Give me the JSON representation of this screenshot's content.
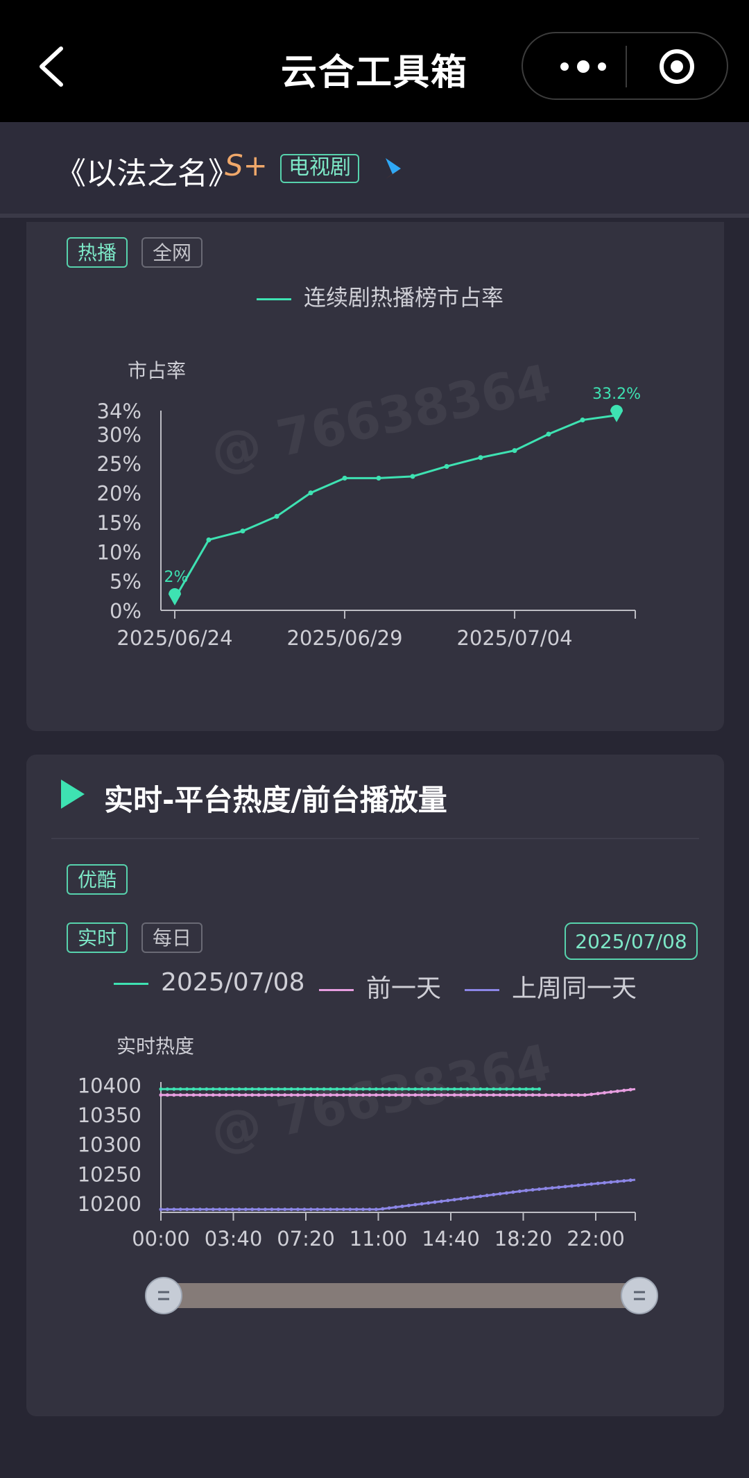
{
  "app": {
    "title": "云合工具箱"
  },
  "show": {
    "title": "《以法之名》",
    "grade": "S+",
    "genre": "电视剧"
  },
  "market_share_card": {
    "tags": [
      "热播",
      "全网"
    ],
    "legend": "连续剧热播榜市占率",
    "chart_data": {
      "type": "line",
      "title": "",
      "ylabel": "市占率",
      "xlabel": "",
      "y_ticks": [
        "0%",
        "5%",
        "10%",
        "15%",
        "20%",
        "25%",
        "30%",
        "34%"
      ],
      "x_ticks": [
        "2025/06/24",
        "2025/06/29",
        "2025/07/04"
      ],
      "ylim": [
        0,
        34
      ],
      "series": [
        {
          "name": "连续剧热播榜市占率",
          "color": "#3ee2b2",
          "x": [
            "2025/06/24",
            "2025/06/25",
            "2025/06/26",
            "2025/06/27",
            "2025/06/28",
            "2025/06/29",
            "2025/06/30",
            "2025/07/01",
            "2025/07/02",
            "2025/07/03",
            "2025/07/04",
            "2025/07/05",
            "2025/07/06",
            "2025/07/07"
          ],
          "values": [
            2,
            12,
            13.5,
            16,
            20,
            22.5,
            22.5,
            22.8,
            24.5,
            26,
            27.2,
            30,
            32.4,
            33.2
          ]
        }
      ],
      "annotations": [
        "2%",
        "33.2%"
      ]
    }
  },
  "realtime_card": {
    "title": "实时-平台热度/前台播放量",
    "platform_tag": "优酷",
    "mode_tags": [
      "实时",
      "每日"
    ],
    "date": "2025/07/08",
    "chart_data": {
      "type": "line",
      "title": "",
      "ylabel": "实时热度",
      "xlabel": "",
      "y_ticks": [
        "10200",
        "10250",
        "10300",
        "10350",
        "10400"
      ],
      "x_ticks": [
        "00:00",
        "03:40",
        "07:20",
        "11:00",
        "14:40",
        "18:20",
        "22:00"
      ],
      "ylim": [
        10185,
        10405
      ],
      "x_range_hours": [
        0,
        24
      ],
      "series": [
        {
          "name": "2025/07/08",
          "color": "#3ee2b2",
          "x": [
            0,
            19.2
          ],
          "values": [
            10393,
            10393
          ]
        },
        {
          "name": "前一天",
          "color": "#e79ee0",
          "x": [
            0,
            21.5,
            24
          ],
          "values": [
            10383,
            10383,
            10393
          ]
        },
        {
          "name": "上周同一天",
          "color": "#8c86e6",
          "x": [
            0,
            11,
            18.5,
            24
          ],
          "values": [
            10190,
            10190,
            10222,
            10240
          ]
        }
      ]
    },
    "range_slider": {
      "start": 0,
      "end": 1
    }
  },
  "icons": {
    "back": "chevron-left-icon",
    "more": "more-dots-icon",
    "close": "target-icon",
    "play": "play-icon",
    "platform": "youku-logo"
  },
  "colors": {
    "accent": "#3ee2b2",
    "prev_day": "#e79ee0",
    "last_week": "#8c86e6",
    "grade": "#f0a86a"
  }
}
